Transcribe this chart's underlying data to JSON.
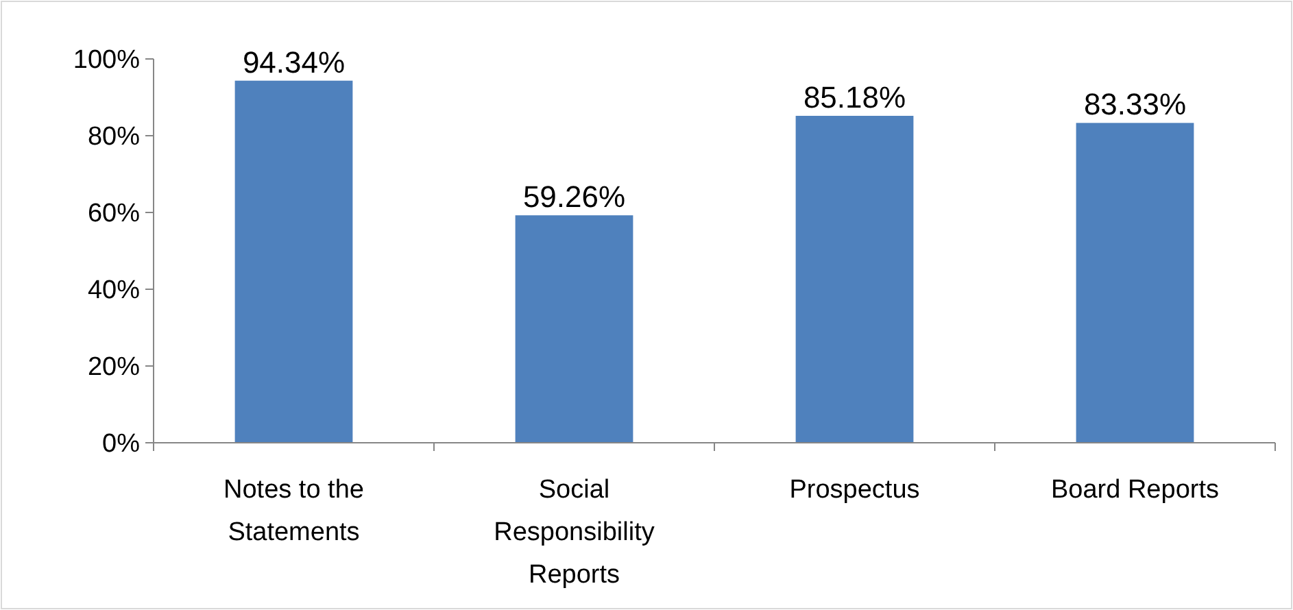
{
  "chart_data": {
    "type": "bar",
    "categories": [
      "Notes to the Statements",
      "Social Responsibility Reports",
      "Prospectus",
      "Board Reports"
    ],
    "values": [
      94.34,
      59.26,
      85.18,
      83.33
    ],
    "value_labels": [
      "94.34%",
      "59.26%",
      "85.18%",
      "83.33%"
    ],
    "color": "#4f81bd",
    "ylim": [
      0,
      100
    ],
    "yticks": [
      {
        "value": 0,
        "label": "0%"
      },
      {
        "value": 20,
        "label": "20%"
      },
      {
        "value": 40,
        "label": "40%"
      },
      {
        "value": 60,
        "label": "60%"
      },
      {
        "value": 80,
        "label": "80%"
      },
      {
        "value": 100,
        "label": "100%"
      }
    ],
    "grid": false
  }
}
